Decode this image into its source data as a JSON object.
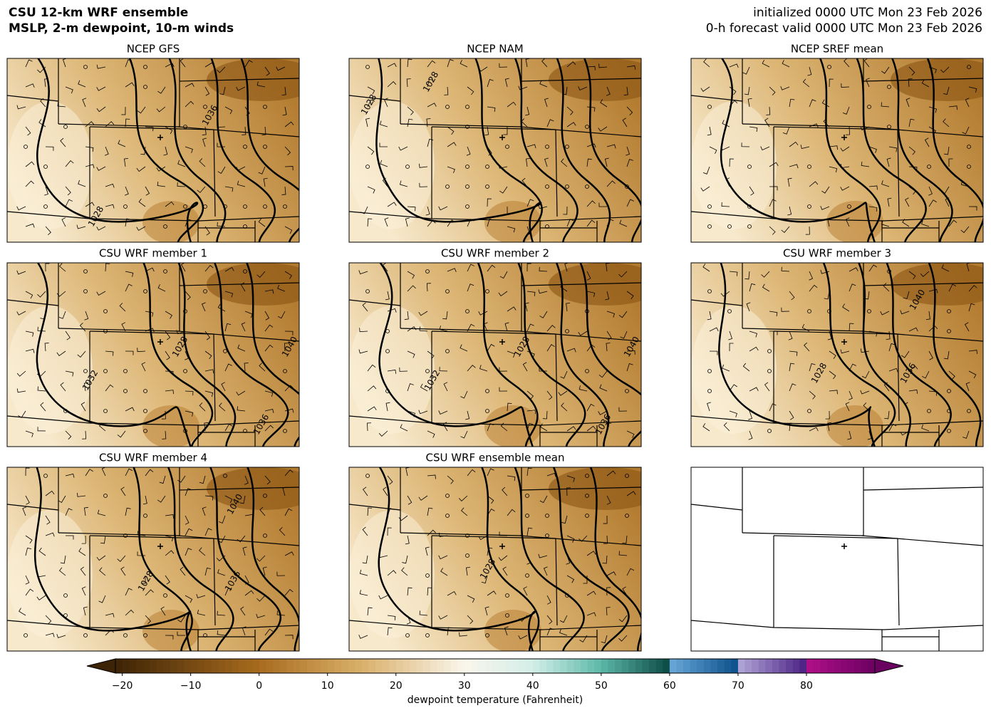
{
  "header": {
    "title_lines": [
      "CSU 12-km WRF ensemble",
      "MSLP, 2-m dewpoint, 10-m winds"
    ],
    "time_lines": [
      "initialized 0000 UTC Mon 23 Feb 2026",
      "0-h forecast valid 0000 UTC Mon 23 Feb 2026"
    ]
  },
  "panels": [
    {
      "title": "NCEP GFS",
      "contour_labels": [
        "1036",
        "1028"
      ]
    },
    {
      "title": "NCEP NAM",
      "contour_labels": [
        "1028",
        "1028"
      ]
    },
    {
      "title": "NCEP SREF mean",
      "contour_labels": []
    },
    {
      "title": "CSU WRF member 1",
      "contour_labels": [
        "1028",
        "1040",
        "1032",
        "1036"
      ]
    },
    {
      "title": "CSU WRF member 2",
      "contour_labels": [
        "1028",
        "1040",
        "1032",
        "1036"
      ]
    },
    {
      "title": "CSU WRF member 3",
      "contour_labels": [
        "1040",
        "1028",
        "1036"
      ]
    },
    {
      "title": "CSU WRF member 4",
      "contour_labels": [
        "1040",
        "1028",
        "1036"
      ]
    },
    {
      "title": "CSU WRF ensemble mean",
      "contour_labels": [
        "1028"
      ]
    }
  ],
  "colorbar": {
    "label": "dewpoint temperature (Fahrenheit)",
    "lim": [
      -21,
      90
    ],
    "ticks": [
      {
        "value": -20,
        "label": "−20"
      },
      {
        "value": -10,
        "label": "−10"
      },
      0,
      10,
      20,
      30,
      40,
      50,
      60,
      70,
      80
    ],
    "stops": [
      {
        "value": -21,
        "color": "#3d2406"
      },
      {
        "value": 0,
        "color": "#a86b1e"
      },
      {
        "value": 15,
        "color": "#d9b06a"
      },
      {
        "value": 30,
        "color": "#fbf6ec"
      },
      {
        "value": 40,
        "color": "#d3eee8"
      },
      {
        "value": 50,
        "color": "#5cb8a8"
      },
      {
        "value": 59.99,
        "color": "#0b4a44"
      },
      {
        "value": 60,
        "color": "#6aa8d8"
      },
      {
        "value": 69.99,
        "color": "#0a4f8a"
      },
      {
        "value": 70,
        "color": "#b3a8d8"
      },
      {
        "value": 79.99,
        "color": "#4a1f84"
      },
      {
        "value": 80,
        "color": "#b0108a"
      },
      {
        "value": 90,
        "color": "#6a0060"
      }
    ]
  }
}
